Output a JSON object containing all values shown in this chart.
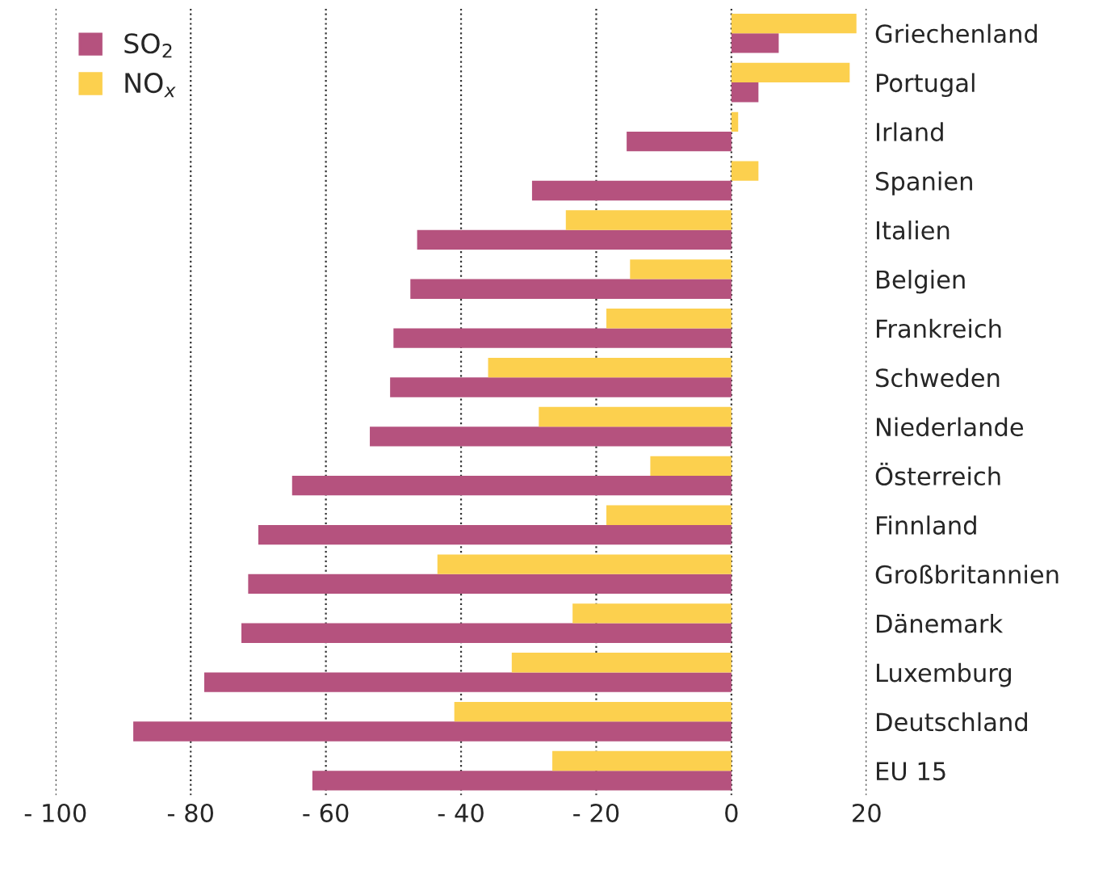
{
  "chart_data": {
    "type": "bar",
    "orientation": "horizontal",
    "categories": [
      "Griechenland",
      "Portugal",
      "Irland",
      "Spanien",
      "Italien",
      "Belgien",
      "Frankreich",
      "Schweden",
      "Niederlande",
      "Österreich",
      "Finnland",
      "Großbritannien",
      "Dänemark",
      "Luxemburg",
      "Deutschland",
      "EU 15"
    ],
    "series": [
      {
        "name": "SO$_{2}$",
        "color": "#b5527e",
        "values": [
          7,
          4,
          -15.5,
          -29.5,
          -46.5,
          -47.5,
          -50,
          -50.5,
          -53.5,
          -65,
          -70,
          -71.5,
          -72.5,
          -78,
          -88.5,
          -62
        ]
      },
      {
        "name": "NO$_{x}$",
        "color": "#fcd04e",
        "values": [
          18.5,
          17.5,
          1,
          4,
          -24.5,
          -15,
          -18.5,
          -36,
          -28.5,
          -12,
          -18.5,
          -43.5,
          -23.5,
          -32.5,
          -41,
          -26.5
        ]
      }
    ],
    "xlim": [
      -100,
      20
    ],
    "xticks": [
      {
        "value": -100,
        "label": "- 100"
      },
      {
        "value": -80,
        "label": "- 80"
      },
      {
        "value": -60,
        "label": "- 60"
      },
      {
        "value": -40,
        "label": "- 40"
      },
      {
        "value": -20,
        "label": "- 20"
      },
      0,
      20
    ],
    "grid": "x",
    "legend": "top left"
  }
}
